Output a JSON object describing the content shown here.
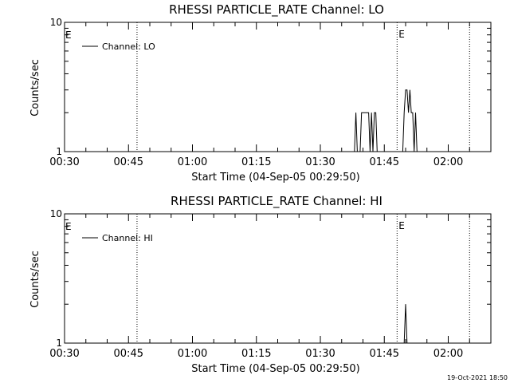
{
  "timestamp": "19-Oct-2021 18:50",
  "chart_data": [
    {
      "type": "line",
      "title": "RHESSI PARTICLE_RATE Channel: LO",
      "xlabel": "Start Time (04-Sep-05 00:29:50)",
      "ylabel": "Counts/sec",
      "x_unit": "time",
      "xlim": [
        "00:30",
        "02:10"
      ],
      "ylim": [
        1,
        10
      ],
      "yscale": "log",
      "x_ticks": [
        "00:30",
        "00:45",
        "01:00",
        "01:15",
        "01:30",
        "01:45",
        "02:00"
      ],
      "y_ticks": [
        {
          "value": 1,
          "label": "1"
        },
        {
          "value": 10,
          "label": "10"
        }
      ],
      "legend": {
        "label": "Channel: LO",
        "placement": "top-left"
      },
      "event_lines": [
        {
          "time": "00:47",
          "label": ""
        },
        {
          "time": "01:48",
          "label": "E"
        },
        {
          "time": "02:05",
          "label": ""
        }
      ],
      "edge_marker": "E",
      "series": [
        {
          "name": "Channel: LO",
          "points": [
            [
              "01:38:00",
              1
            ],
            [
              "01:38:20",
              2
            ],
            [
              "01:38:40",
              1
            ],
            [
              "01:39:00",
              1
            ],
            [
              "01:39:20",
              1
            ],
            [
              "01:39:40",
              2
            ],
            [
              "01:40:00",
              2
            ],
            [
              "01:40:20",
              2
            ],
            [
              "01:40:40",
              2
            ],
            [
              "01:41:00",
              2
            ],
            [
              "01:41:20",
              2
            ],
            [
              "01:41:40",
              1
            ],
            [
              "01:42:00",
              2
            ],
            [
              "01:42:20",
              1
            ],
            [
              "01:42:40",
              2
            ],
            [
              "01:43:00",
              2
            ],
            [
              "01:43:20",
              1
            ],
            [
              "01:43:40",
              1
            ],
            [
              "01:49:20",
              1
            ],
            [
              "01:49:40",
              2
            ],
            [
              "01:50:00",
              3
            ],
            [
              "01:50:20",
              3
            ],
            [
              "01:50:40",
              2
            ],
            [
              "01:51:00",
              3
            ],
            [
              "01:51:20",
              2
            ],
            [
              "01:51:40",
              2
            ],
            [
              "01:52:00",
              1
            ],
            [
              "01:52:20",
              2
            ],
            [
              "01:52:40",
              1
            ],
            [
              "01:53:00",
              1
            ]
          ]
        }
      ]
    },
    {
      "type": "line",
      "title": "RHESSI PARTICLE_RATE Channel: HI",
      "xlabel": "Start Time (04-Sep-05 00:29:50)",
      "ylabel": "Counts/sec",
      "x_unit": "time",
      "xlim": [
        "00:30",
        "02:10"
      ],
      "ylim": [
        1,
        10
      ],
      "yscale": "log",
      "x_ticks": [
        "00:30",
        "00:45",
        "01:00",
        "01:15",
        "01:30",
        "01:45",
        "02:00"
      ],
      "y_ticks": [
        {
          "value": 1,
          "label": "1"
        },
        {
          "value": 10,
          "label": "10"
        }
      ],
      "legend": {
        "label": "Channel: HI",
        "placement": "top-left"
      },
      "event_lines": [
        {
          "time": "00:47",
          "label": ""
        },
        {
          "time": "01:48",
          "label": "E"
        },
        {
          "time": "02:05",
          "label": ""
        }
      ],
      "edge_marker": "E",
      "series": [
        {
          "name": "Channel: HI",
          "points": [
            [
              "01:49:40",
              1
            ],
            [
              "01:50:00",
              2
            ],
            [
              "01:50:20",
              1
            ]
          ]
        }
      ]
    }
  ]
}
